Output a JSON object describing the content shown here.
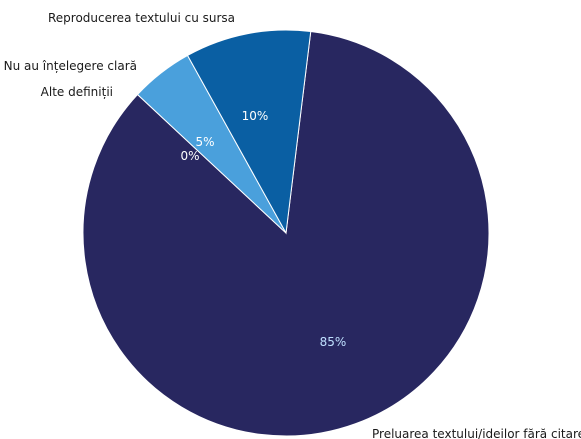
{
  "chart_data": {
    "type": "pie",
    "slices": [
      {
        "label": "Preluarea textului/ideilor fără citare",
        "value": 85,
        "pct_label": "85%",
        "color": "#282760",
        "pct_color": "#bfe0ff"
      },
      {
        "label": "Alte definiții",
        "value": 0,
        "pct_label": "0%",
        "color": "#4aa0dc",
        "pct_color": "#ffffff"
      },
      {
        "label": "Nu au înțelegere clară",
        "value": 5,
        "pct_label": "5%",
        "color": "#4aa0dc",
        "pct_color": "#ffffff"
      },
      {
        "label": "Reproducerea textului cu sursa",
        "value": 10,
        "pct_label": "10%",
        "color": "#0a5fa3",
        "pct_color": "#ffffff"
      }
    ],
    "start_angle_deg": 83,
    "direction": "clockwise",
    "legend": "none"
  }
}
